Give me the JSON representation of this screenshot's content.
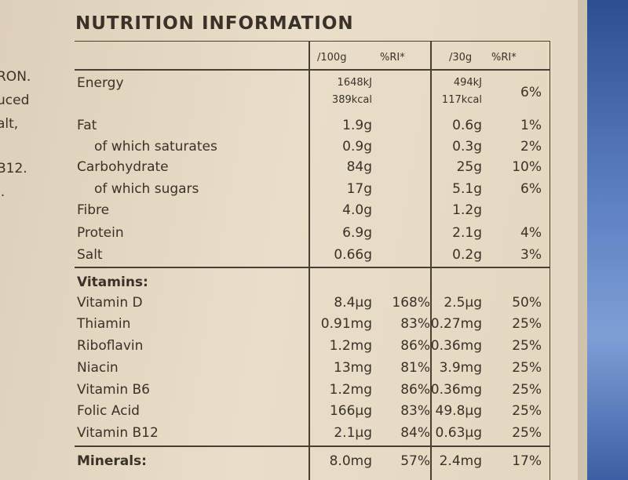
{
  "side_text": [
    "RON.",
    "uced",
    "alt,",
    "B12.",
    "l."
  ],
  "header": {
    "title": "NUTRITION INFORMATION"
  },
  "table": {
    "columns": {
      "per100g": "/100g",
      "ri100g": "%RI*",
      "per30g": "/30g",
      "ri30g": "%RI*"
    },
    "rows": [
      {
        "label": "Energy",
        "per100g": [
          "1648kJ",
          "389kcal"
        ],
        "per30g": [
          "494kJ",
          "117kcal"
        ],
        "ri30g": "6%"
      },
      {
        "label": "Fat",
        "per100g": "1.9g",
        "per30g": "0.6g",
        "ri30g": "1%"
      },
      {
        "label": "of which saturates",
        "per100g": "0.9g",
        "per30g": "0.3g",
        "ri30g": "2%"
      },
      {
        "label": "Carbohydrate",
        "per100g": "84g",
        "per30g": "25g",
        "ri30g": "10%"
      },
      {
        "label": "of which sugars",
        "per100g": "17g",
        "per30g": "5.1g",
        "ri30g": "6%"
      },
      {
        "label": "Fibre",
        "per100g": "4.0g",
        "per30g": "1.2g"
      },
      {
        "label": "Protein",
        "per100g": "6.9g",
        "per30g": "2.1g",
        "ri30g": "4%"
      },
      {
        "label": "Salt",
        "per100g": "0.66g",
        "per30g": "0.2g",
        "ri30g": "3%"
      },
      {
        "label": "Vitamins:"
      },
      {
        "label": "Vitamin D",
        "per100g": "8.4µg",
        "ri100g": "168%",
        "per30g": "2.5µg",
        "ri30g": "50%"
      },
      {
        "label": "Thiamin",
        "per100g": "0.91mg",
        "ri100g": "83%",
        "per30g": "0.27mg",
        "ri30g": "25%"
      },
      {
        "label": "Riboflavin",
        "per100g": "1.2mg",
        "ri100g": "86%",
        "per30g": "0.36mg",
        "ri30g": "25%"
      },
      {
        "label": "Niacin",
        "per100g": "13mg",
        "ri100g": "81%",
        "per30g": "3.9mg",
        "ri30g": "25%"
      },
      {
        "label": "Vitamin B6",
        "per100g": "1.2mg",
        "ri100g": "86%",
        "per30g": "0.36mg",
        "ri30g": "25%"
      },
      {
        "label": "Folic Acid",
        "per100g": "166µg",
        "ri100g": "83%",
        "per30g": "49.8µg",
        "ri30g": "25%"
      },
      {
        "label": "Vitamin B12",
        "per100g": "2.1µg",
        "ri100g": "84%",
        "per30g": "0.63µg",
        "ri30g": "25%"
      },
      {
        "label": "Minerals:",
        "per100g": "8.0mg",
        "ri100g": "57%",
        "per30g": "2.4mg",
        "ri30g": "17%"
      }
    ]
  }
}
